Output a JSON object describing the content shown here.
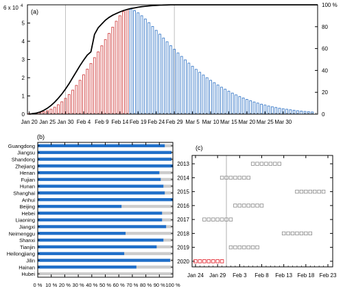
{
  "chart_data": [
    {
      "panel": "(a)",
      "type": "bar",
      "bar_values_unit": "",
      "ylabel_left_exponent": "6 x 10",
      "exponent_power": "4",
      "ylim_left": [
        0,
        60000
      ],
      "yticks_left": [
        "0",
        "1",
        "2",
        "3",
        "4",
        "5"
      ],
      "ylim_right": [
        0,
        100
      ],
      "yticks_right": [
        "0",
        "20",
        "40",
        "60",
        "80",
        "100 %"
      ],
      "xticks": [
        "Jan 20",
        "Jan 25",
        "Jan 30",
        "Feb 4",
        "Feb 9",
        "Feb 14",
        "Feb 19",
        "Feb 24",
        "Feb 29",
        "Mar 5",
        "Mar 10",
        "Mar 15",
        "Mar 20",
        "Mar 25",
        "Mar 30"
      ],
      "grid_vlines_at": [
        "Jan 30",
        "Feb 29"
      ],
      "red_bar_count": 28,
      "series": [
        {
          "color": "#d04040",
          "values": [
            300,
            400,
            600,
            900,
            1300,
            1900,
            2700,
            3800,
            5200,
            6800,
            8700,
            10800,
            13200,
            15800,
            18600,
            21600,
            24700,
            27800,
            31000,
            34200,
            37500,
            40900,
            44300,
            47700,
            51000,
            54000,
            56300,
            57400
          ]
        },
        {
          "color": "#3a7ac8",
          "values": [
            57600,
            56800,
            55600,
            54000,
            52200,
            50200,
            48100,
            46000,
            43900,
            41800,
            39700,
            37600,
            35600,
            33600,
            31700,
            29800,
            28000,
            26300,
            24600,
            23000,
            21500,
            20000,
            18600,
            17300,
            16000,
            14800,
            13700,
            12600,
            11600,
            10600,
            9700,
            8900,
            8100,
            7400,
            6700,
            6100,
            5500,
            5000,
            4500,
            4100,
            3700,
            3300,
            3000,
            2700,
            2400,
            2150,
            1900,
            1700,
            1500,
            1350,
            1200
          ]
        },
        {
          "color": "#000000",
          "cumulative_percent": [
            0,
            0.5,
            1,
            2,
            3.5,
            5.5,
            8,
            11,
            14.5,
            18.5,
            23,
            28,
            33.5,
            39,
            44.5,
            49.5,
            54,
            57,
            73,
            79,
            82.5,
            86,
            88.5,
            90.5,
            92,
            93.5,
            94.8,
            95.8,
            96.6,
            97.2,
            97.8,
            98.3,
            98.7,
            99,
            99.3,
            99.5,
            99.7,
            99.8,
            99.9,
            100
          ]
        }
      ]
    },
    {
      "panel": "(b)",
      "type": "bar",
      "xticks": [
        "0 %",
        "10 %",
        "20 %",
        "30 %",
        "40 %",
        "50 %",
        "60 %",
        "70 %",
        "80 %",
        "90 %",
        "100 %"
      ],
      "categories": [
        "Guangdong",
        "Jiangsu",
        "Shandong",
        "Zhejiang",
        "Henan",
        "Fujian",
        "Hunan",
        "Shanghai",
        "Anhui",
        "Beijing",
        "Hebei",
        "Liaoning",
        "Jiangxi",
        "Neimenggu",
        "Shanxi",
        "Tianjin",
        "Heilongjiang",
        "Jilin",
        "Hainan",
        "Hubei"
      ],
      "values": [
        94,
        99,
        99,
        100,
        90,
        91,
        93,
        94,
        100,
        62,
        92,
        92,
        95,
        65,
        93,
        88,
        64,
        98,
        73,
        0
      ],
      "bar_color": "#1f6fc9",
      "background_color": "#cccccc"
    },
    {
      "panel": "(c)",
      "type": "scatter",
      "xticks": [
        "Jan 24",
        "Jan 29",
        "Feb 3",
        "Feb 8",
        "Feb 13",
        "Feb 18",
        "Feb 23"
      ],
      "vline_at": "Jan 31",
      "years": [
        "2013",
        "2014",
        "2015",
        "2016",
        "2017",
        "2018",
        "2019",
        "2020"
      ],
      "start_dates": [
        "Feb 6",
        "Jan 30",
        "Feb 16",
        "Feb 2",
        "Jan 26",
        "Feb 13",
        "Feb 1",
        "Jan 24"
      ],
      "box_counts": [
        7,
        7,
        7,
        7,
        7,
        7,
        7,
        7
      ],
      "highlight_year": "2020",
      "highlight_color": "#e0101a",
      "normal_color": "#888888"
    }
  ]
}
